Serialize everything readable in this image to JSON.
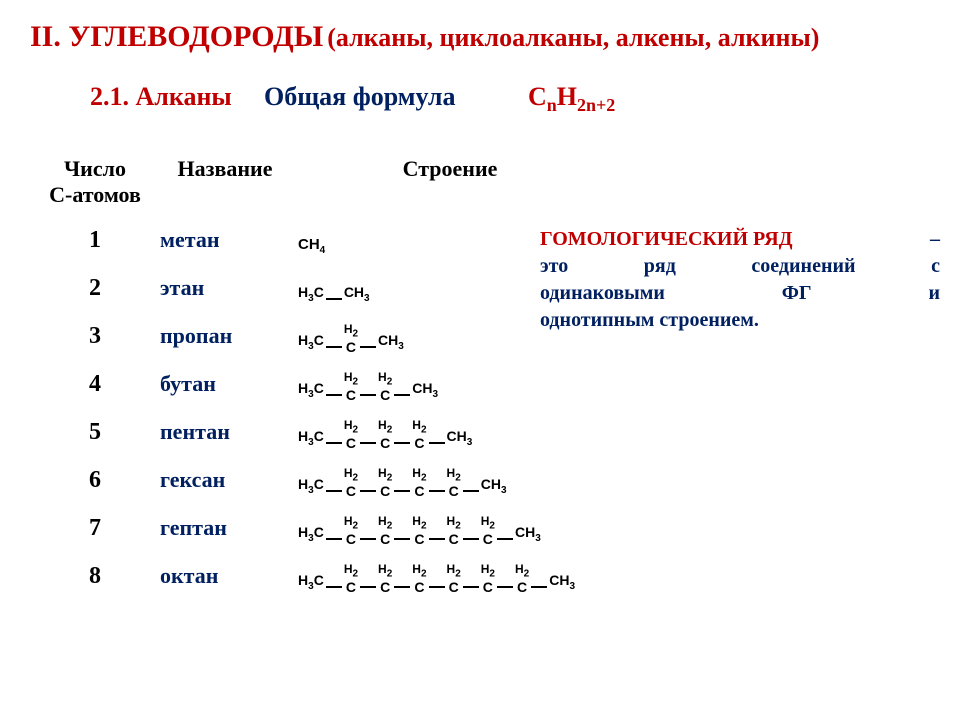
{
  "colors": {
    "red": "#c00000",
    "blue": "#002060",
    "black": "#000000",
    "bg": "#ffffff"
  },
  "title": {
    "main": "II. УГЛЕВОДОРОДЫ",
    "sub": "(алканы, циклоалканы, алкены, алкины)"
  },
  "section": {
    "num": "2.1. Алканы",
    "label": "Общая формула",
    "formula_base": "C",
    "formula_n": "n",
    "formula_h": "H",
    "formula_2n2": "2n+2"
  },
  "headers": {
    "num1": "Число",
    "num2": "С-атомов",
    "name": "Название",
    "struct": "Строение"
  },
  "rows": [
    {
      "n": "1",
      "name": "метан",
      "ch2": 0
    },
    {
      "n": "2",
      "name": "этан",
      "ch2": 0
    },
    {
      "n": "3",
      "name": "пропан",
      "ch2": 1
    },
    {
      "n": "4",
      "name": "бутан",
      "ch2": 2
    },
    {
      "n": "5",
      "name": "пентан",
      "ch2": 3
    },
    {
      "n": "6",
      "name": "гексан",
      "ch2": 4
    },
    {
      "n": "7",
      "name": "гептан",
      "ch2": 5
    },
    {
      "n": "8",
      "name": "октан",
      "ch2": 6
    }
  ],
  "frag": {
    "ch4_c": "CH",
    "ch4_4": "4",
    "h3c": "H",
    "h3c_3": "3",
    "h3c_c": "C",
    "ch3_c": "CH",
    "ch3_3": "3",
    "h2_h": "H",
    "h2_2": "2",
    "c": "C"
  },
  "note": {
    "red": "ГОМОЛОГИЧЕСКИЙ РЯД",
    "dash": "–",
    "line1b": "это ряд соединений с",
    "line2a": "одинаковыми",
    "line2b": "ФГ",
    "line2c": "и",
    "line3": "однотипным строением."
  }
}
